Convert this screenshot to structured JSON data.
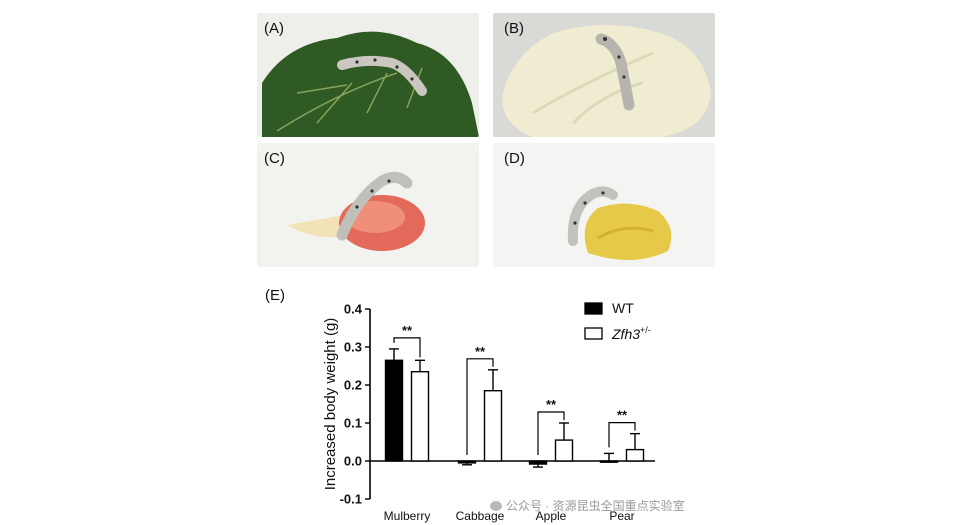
{
  "panels": [
    {
      "label": "(A)"
    },
    {
      "label": "(B)"
    },
    {
      "label": "(C)"
    },
    {
      "label": "(D)"
    }
  ],
  "chart_data": {
    "type": "bar",
    "panel_label": "(E)",
    "title": "",
    "xlabel": "",
    "ylabel": "Increased body weight (g)",
    "ylim": [
      -0.1,
      0.4
    ],
    "yticks": [
      -0.1,
      0.0,
      0.1,
      0.2,
      0.3,
      0.4
    ],
    "ytick_labels": [
      "-0.1",
      "0.0",
      "0.1",
      "0.2",
      "0.3",
      "0.4"
    ],
    "categories": [
      "Mulberry",
      "Cabbage",
      "Apple",
      "Pear"
    ],
    "series": [
      {
        "name": "WT",
        "fill": "#000000",
        "values": [
          0.265,
          -0.005,
          -0.008,
          0.0
        ],
        "errors": [
          0.03,
          0.005,
          0.008,
          0.02
        ]
      },
      {
        "name_base": "Zfh3",
        "name_sup": "+/-",
        "fill": "#ffffff",
        "values": [
          0.235,
          0.185,
          0.055,
          0.03
        ],
        "errors": [
          0.03,
          0.055,
          0.045,
          0.042
        ]
      }
    ],
    "significance": [
      "**",
      "**",
      "**",
      "**"
    ],
    "legend_position": "top-right",
    "grid": false
  },
  "watermark": {
    "text": "公众号 · 资源昆虫全国重点实验室"
  },
  "colors": {
    "axis": "#000000",
    "bar_outline": "#000000"
  }
}
